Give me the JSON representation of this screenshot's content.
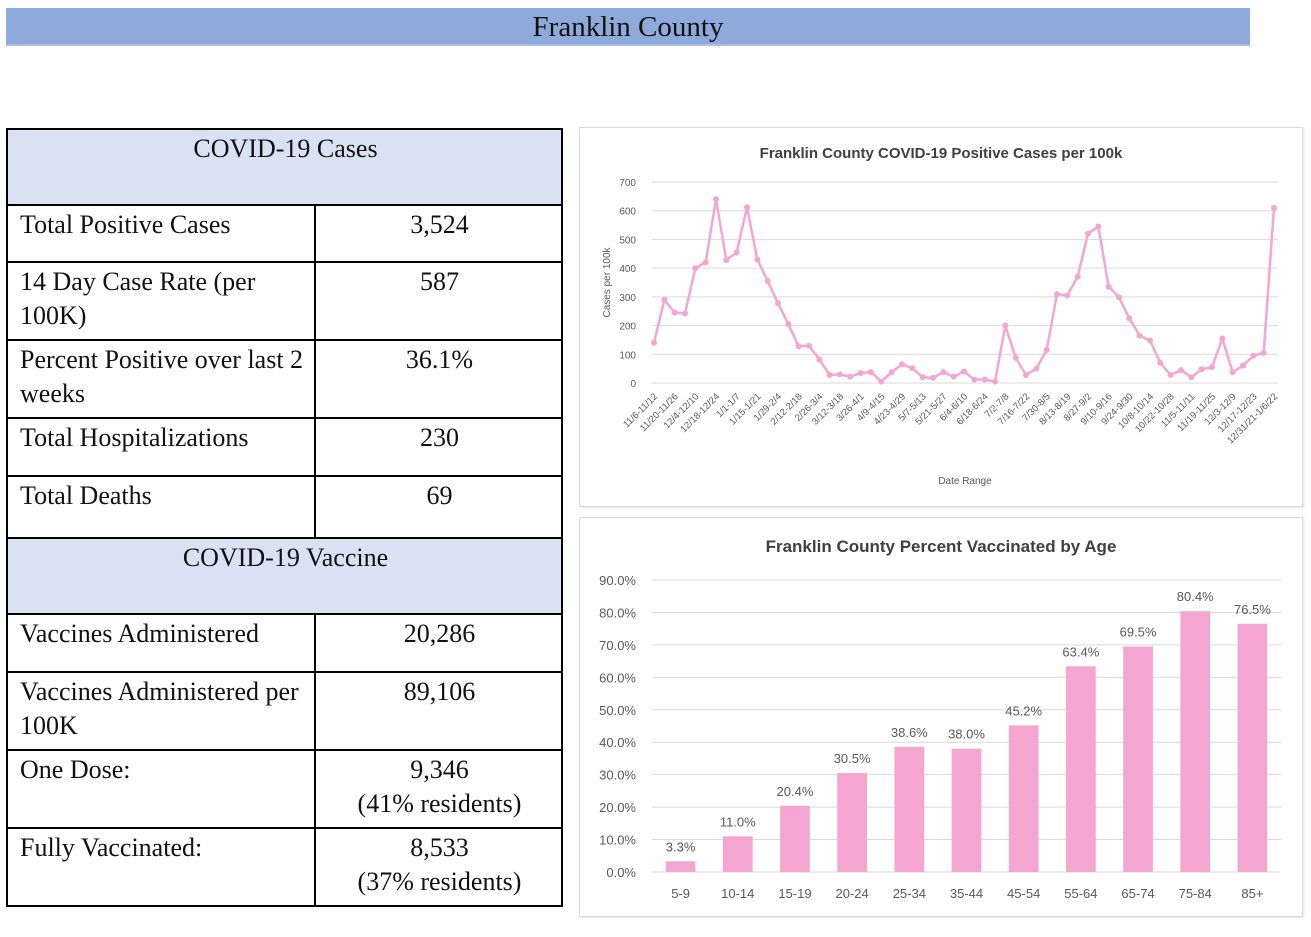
{
  "header": {
    "title": "Franklin County"
  },
  "cases_section": {
    "title": "COVID-19 Cases",
    "rows": [
      {
        "label": "Total Positive Cases",
        "value": "3,524"
      },
      {
        "label": "14 Day Case Rate (per 100K)",
        "value": "587"
      },
      {
        "label": "Percent Positive over last 2 weeks",
        "value": "36.1%"
      },
      {
        "label": "Total Hospitalizations",
        "value": "230"
      },
      {
        "label": "Total Deaths",
        "value": "69"
      }
    ]
  },
  "vaccine_section": {
    "title": "COVID-19 Vaccine",
    "rows": [
      {
        "label": "Vaccines Administered",
        "value": "20,286"
      },
      {
        "label": "Vaccines Administered per 100K",
        "value": "89,106"
      },
      {
        "label": "One Dose:",
        "value": "9,346",
        "value2": "(41% residents)"
      },
      {
        "label": "Fully Vaccinated:",
        "value": "8,533",
        "value2": "(37% residents)"
      }
    ]
  },
  "colors": {
    "banner": "#8eaadb",
    "section_header": "#d9e2f3",
    "series": "#f4a6d1",
    "grid": "#d9d9d9"
  },
  "chart_data": [
    {
      "type": "line",
      "title": "Franklin County COVID-19 Positive Cases per 100k",
      "xlabel": "Date Range",
      "ylabel": "Cases per 100k",
      "ylim": [
        0,
        700
      ],
      "yticks": [
        0,
        100,
        200,
        300,
        400,
        500,
        600,
        700
      ],
      "grid": true,
      "legend": "none",
      "x_tick_labels": [
        "11/6-11/12",
        "11/20-11/26",
        "12/4-12/10",
        "12/18-12/24",
        "1/1-1/7",
        "1/15-1/21",
        "1/29-2/4",
        "2/12-2/18",
        "2/26-3/4",
        "3/12-3/18",
        "3/26-4/1",
        "4/9-4/15",
        "4/23-4/29",
        "5/7-5/13",
        "5/21-5/27",
        "6/4-6/10",
        "6/18-6/24",
        "7/2-7/8",
        "7/16-7/22",
        "7/30-8/5",
        "8/13-8/19",
        "8/27-9/2",
        "9/10-9/16",
        "9/24-9/30",
        "10/8-10/14",
        "10/22-10/28",
        "11/5-11/11",
        "11/19-11/25",
        "12/3-12/9",
        "12/17-12/23",
        "12/31/21-1/6/22"
      ],
      "series": [
        {
          "name": "Cases per 100k",
          "values": [
            140,
            290,
            245,
            242,
            400,
            420,
            640,
            428,
            455,
            612,
            430,
            355,
            278,
            205,
            128,
            130,
            82,
            28,
            30,
            22,
            35,
            38,
            5,
            38,
            65,
            52,
            20,
            18,
            38,
            22,
            40,
            12,
            12,
            5,
            200,
            88,
            28,
            50,
            115,
            310,
            305,
            370,
            520,
            545,
            335,
            298,
            225,
            165,
            148,
            70,
            28,
            45,
            20,
            48,
            55,
            155,
            38,
            60,
            95,
            105,
            610
          ]
        }
      ]
    },
    {
      "type": "bar",
      "title": "Franklin County Percent Vaccinated by Age",
      "categories": [
        "5-9",
        "10-14",
        "15-19",
        "20-24",
        "25-34",
        "35-44",
        "45-54",
        "55-64",
        "65-74",
        "75-84",
        "85+"
      ],
      "values": [
        3.3,
        11.0,
        20.4,
        30.5,
        38.6,
        38.0,
        45.2,
        63.4,
        69.5,
        80.4,
        76.5
      ],
      "data_labels": [
        "3.3%",
        "11.0%",
        "20.4%",
        "30.5%",
        "38.6%",
        "38.0%",
        "45.2%",
        "63.4%",
        "69.5%",
        "80.4%",
        "76.5%"
      ],
      "ylim": [
        0,
        90
      ],
      "yticks": [
        "0.0%",
        "10.0%",
        "20.0%",
        "30.0%",
        "40.0%",
        "50.0%",
        "60.0%",
        "70.0%",
        "80.0%",
        "90.0%"
      ],
      "grid": true,
      "legend": "none",
      "xlabel": "",
      "ylabel": ""
    }
  ]
}
